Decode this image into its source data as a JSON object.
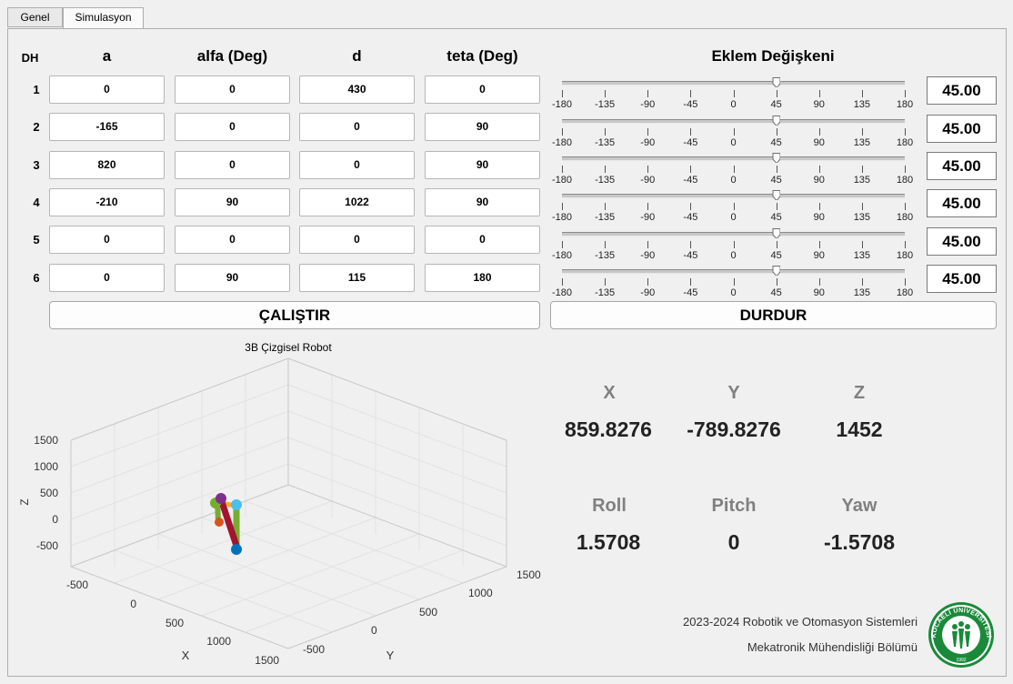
{
  "tabs": [
    {
      "label": "Genel",
      "active": false
    },
    {
      "label": "Simulasyon",
      "active": true
    }
  ],
  "dh_table": {
    "headers": {
      "dh": "DH",
      "a": "a",
      "alfa": "alfa (Deg)",
      "d": "d",
      "teta": "teta (Deg)"
    },
    "rows": [
      {
        "label": "1",
        "a": "0",
        "alfa": "0",
        "d": "430",
        "teta": "0"
      },
      {
        "label": "2",
        "a": "-165",
        "alfa": "0",
        "d": "0",
        "teta": "90"
      },
      {
        "label": "3",
        "a": "820",
        "alfa": "0",
        "d": "0",
        "teta": "90"
      },
      {
        "label": "4",
        "a": "-210",
        "alfa": "90",
        "d": "1022",
        "teta": "90"
      },
      {
        "label": "5",
        "a": "0",
        "alfa": "0",
        "d": "0",
        "teta": "0"
      },
      {
        "label": "6",
        "a": "0",
        "alfa": "90",
        "d": "115",
        "teta": "180"
      }
    ]
  },
  "joints": {
    "title": "Eklem Değişkeni",
    "ticks": [
      "-180",
      "-135",
      "-90",
      "-45",
      "0",
      "45",
      "90",
      "135",
      "180"
    ],
    "min": -180,
    "max": 180,
    "values": [
      45,
      45,
      45,
      45,
      45,
      45
    ],
    "display": [
      "45.00",
      "45.00",
      "45.00",
      "45.00",
      "45.00",
      "45.00"
    ]
  },
  "buttons": {
    "run": "ÇALIŞTIR",
    "stop": "DURDUR"
  },
  "plot": {
    "title": "3B Çizgisel Robot",
    "z_label": "Z",
    "x_label": "X",
    "y_label": "Y",
    "z_ticks": [
      "1500",
      "1000",
      "500",
      "0",
      "-500"
    ],
    "x_ticks": [
      "-500",
      "0",
      "500",
      "1000",
      "1500"
    ],
    "y_ticks": [
      "-500",
      "0",
      "500",
      "1000",
      "1500"
    ],
    "colors": {
      "link_green": "#77ac30",
      "link_red": "#a2142f",
      "link_orange": "#edb120",
      "joint_blue": "#0072bd",
      "joint_purple": "#7e2f8e",
      "joint_cyan": "#4dbeee",
      "joint_red": "#d95319"
    }
  },
  "position": {
    "x_label": "X",
    "y_label": "Y",
    "z_label": "Z",
    "x": "859.8276",
    "y": "-789.8276",
    "z": "1452"
  },
  "orientation": {
    "roll_label": "Roll",
    "pitch_label": "Pitch",
    "yaw_label": "Yaw",
    "roll": "1.5708",
    "pitch": "0",
    "yaw": "-1.5708"
  },
  "credits": {
    "line1": "2023-2024 Robotik ve Otomasyon Sistemleri",
    "line2": "Mekatronik Mühendisliği Bölümü"
  },
  "logo": {
    "text": "KOCAELİ ÜNİVERSİTESİ",
    "year": "1992",
    "color": "#1a8a3a"
  }
}
